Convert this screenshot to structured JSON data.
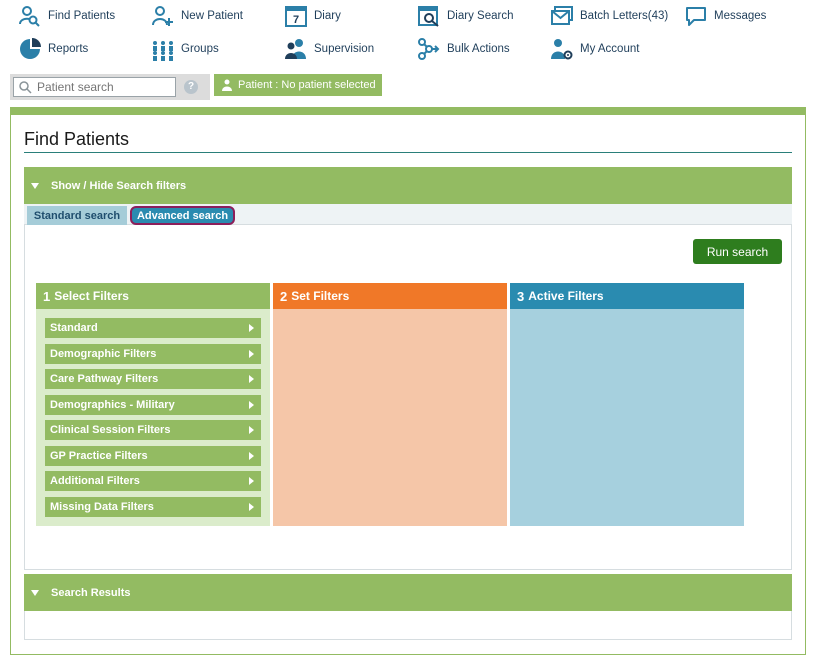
{
  "nav": {
    "items": [
      {
        "label": "Find Patients",
        "icon": "find-patients-icon"
      },
      {
        "label": "New Patient",
        "icon": "new-patient-icon"
      },
      {
        "label": "Diary",
        "icon": "diary-icon",
        "icon_text": "7"
      },
      {
        "label": "Diary Search",
        "icon": "diary-search-icon"
      },
      {
        "label": "Batch Letters(43)",
        "icon": "batch-letters-icon"
      },
      {
        "label": "Messages",
        "icon": "messages-icon"
      },
      {
        "label": "Reports",
        "icon": "reports-icon"
      },
      {
        "label": "Groups",
        "icon": "groups-icon"
      },
      {
        "label": "Supervision",
        "icon": "supervision-icon"
      },
      {
        "label": "Bulk Actions",
        "icon": "bulk-actions-icon"
      },
      {
        "label": "My Account",
        "icon": "my-account-icon"
      }
    ]
  },
  "search": {
    "placeholder": "Patient search",
    "help_label": "?"
  },
  "patient_badge": "Patient : No patient selected",
  "page_title": "Find Patients",
  "search_filters_bar": "Show / Hide Search filters",
  "tabs": {
    "standard": "Standard search",
    "advanced": "Advanced search"
  },
  "run_search_label": "Run search",
  "columns": [
    {
      "num": "1",
      "title": "Select Filters"
    },
    {
      "num": "2",
      "title": "Set Filters"
    },
    {
      "num": "3",
      "title": "Active Filters"
    }
  ],
  "filters": [
    "Standard",
    "Demographic Filters",
    "Care Pathway Filters",
    "Demographics - Military",
    "Clinical Session Filters",
    "GP Practice Filters",
    "Additional Filters",
    "Missing Data Filters"
  ],
  "search_results_bar": "Search Results",
  "colors": {
    "accent_green": "#93bb62",
    "dark_green": "#2e7d1e",
    "orange": "#f07828",
    "teal": "#2a8bb0",
    "icon_blue": "#2b7fa8",
    "set_filters_bg": "#f5c6a8",
    "active_filters_bg": "#a6d0de",
    "select_filters_bg": "#dbeccb"
  }
}
